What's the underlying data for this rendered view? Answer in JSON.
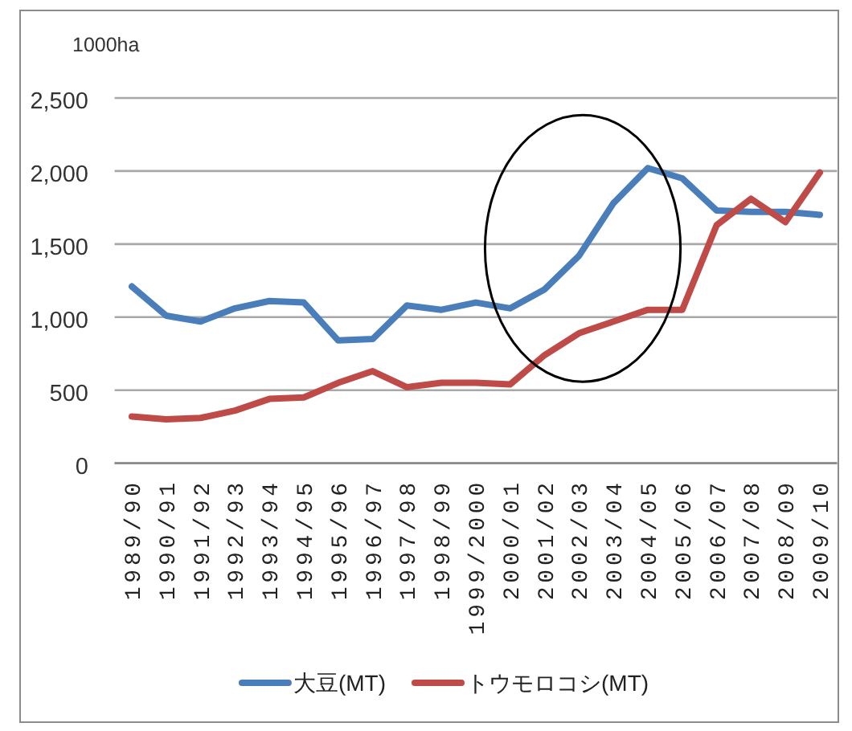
{
  "chart_data": {
    "type": "line",
    "ylabel": "1000ha",
    "categories": [
      "1989/90",
      "1990/91",
      "1991/92",
      "1992/93",
      "1993/94",
      "1994/95",
      "1995/96",
      "1996/97",
      "1997/98",
      "1998/99",
      "1999/2000",
      "2000/01",
      "2001/02",
      "2002/03",
      "2003/04",
      "2004/05",
      "2005/06",
      "2006/07",
      "2007/08",
      "2008/09",
      "2009/10"
    ],
    "series": [
      {
        "name": "大豆(MT)",
        "color": "#4a7ebb",
        "values": [
          1210,
          1010,
          970,
          1060,
          1110,
          1100,
          840,
          850,
          1080,
          1050,
          1100,
          1060,
          1190,
          1420,
          1780,
          2020,
          1950,
          1730,
          1720,
          1720,
          1700
        ]
      },
      {
        "name": "トウモロコシ(MT)",
        "color": "#be4b48",
        "values": [
          320,
          300,
          310,
          360,
          440,
          450,
          550,
          630,
          520,
          550,
          550,
          540,
          740,
          890,
          970,
          1050,
          1050,
          1630,
          1810,
          1650,
          1990
        ]
      }
    ],
    "ylim": [
      0,
      2500
    ],
    "yticks": [
      0,
      500,
      {
        "value": 1000,
        "label": "1,000"
      },
      {
        "value": 1500,
        "label": "1,500"
      },
      {
        "value": 2000,
        "label": "2,000"
      },
      {
        "value": 2500,
        "label": "2,500"
      }
    ],
    "grid": "y",
    "legend": "bottom"
  }
}
